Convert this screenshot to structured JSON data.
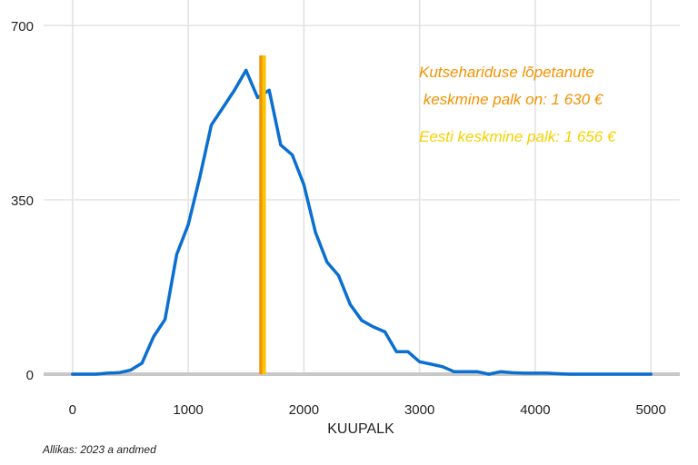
{
  "chart_data": {
    "type": "line",
    "xlabel": "KUUPALK",
    "ylabel": "",
    "xlim": [
      -250,
      5250
    ],
    "ylim": [
      0,
      700
    ],
    "x_ticks": [
      0,
      1000,
      2000,
      3000,
      4000,
      5000
    ],
    "y_ticks": [
      0,
      350,
      700
    ],
    "grid": true,
    "series": [
      {
        "color": "#0a6fd0",
        "x": [
          0,
          100,
          200,
          300,
          400,
          500,
          600,
          700,
          800,
          900,
          1000,
          1100,
          1200,
          1300,
          1400,
          1500,
          1600,
          1700,
          1800,
          1900,
          2000,
          2100,
          2200,
          2300,
          2400,
          2500,
          2600,
          2700,
          2800,
          2900,
          3000,
          3100,
          3200,
          3300,
          3400,
          3500,
          3600,
          3700,
          3800,
          3900,
          4000,
          4100,
          4200,
          4300,
          4400,
          4500,
          4600,
          4700,
          4800,
          4900,
          5000
        ],
        "values": [
          0,
          0,
          0,
          2,
          3,
          8,
          22,
          75,
          110,
          240,
          300,
          395,
          500,
          535,
          570,
          610,
          555,
          570,
          460,
          440,
          380,
          285,
          225,
          198,
          140,
          108,
          95,
          85,
          45,
          45,
          25,
          20,
          15,
          5,
          5,
          5,
          0,
          5,
          3,
          2,
          2,
          2,
          1,
          0,
          0,
          0,
          0,
          0,
          0,
          0,
          0
        ]
      }
    ],
    "reference_lines": [
      {
        "x": 1630,
        "color": "#f39200"
      },
      {
        "x": 1656,
        "color": "#f7c600"
      }
    ],
    "annotations": [
      {
        "lines": [
          "Kutsehariduse lõpetanute",
          " keskmine palk on: 1 630 €"
        ],
        "color": "#f39200"
      },
      {
        "lines": [
          "Eesti keskmine palk: 1 656 €"
        ],
        "color": "#f7d000"
      }
    ],
    "source": "Allikas: 2023 a andmed"
  }
}
